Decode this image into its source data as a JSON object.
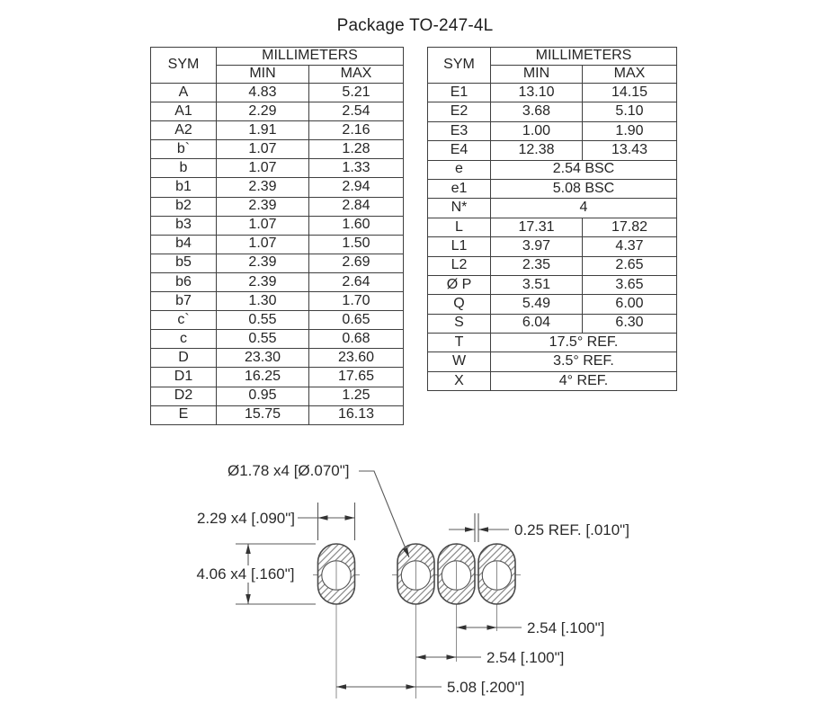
{
  "title": "Package TO-247-4L",
  "tables": {
    "left": {
      "headers": {
        "sym": "SYM",
        "group": "MILLIMETERS",
        "min": "MIN",
        "max": "MAX"
      },
      "rows": [
        {
          "sym": "A",
          "min": "4.83",
          "max": "5.21"
        },
        {
          "sym": "A1",
          "min": "2.29",
          "max": "2.54"
        },
        {
          "sym": "A2",
          "min": "1.91",
          "max": "2.16"
        },
        {
          "sym": "b`",
          "min": "1.07",
          "max": "1.28"
        },
        {
          "sym": "b",
          "min": "1.07",
          "max": "1.33"
        },
        {
          "sym": "b1",
          "min": "2.39",
          "max": "2.94"
        },
        {
          "sym": "b2",
          "min": "2.39",
          "max": "2.84"
        },
        {
          "sym": "b3",
          "min": "1.07",
          "max": "1.60"
        },
        {
          "sym": "b4",
          "min": "1.07",
          "max": "1.50"
        },
        {
          "sym": "b5",
          "min": "2.39",
          "max": "2.69"
        },
        {
          "sym": "b6",
          "min": "2.39",
          "max": "2.64"
        },
        {
          "sym": "b7",
          "min": "1.30",
          "max": "1.70"
        },
        {
          "sym": "c`",
          "min": "0.55",
          "max": "0.65"
        },
        {
          "sym": "c",
          "min": "0.55",
          "max": "0.68"
        },
        {
          "sym": "D",
          "min": "23.30",
          "max": "23.60"
        },
        {
          "sym": "D1",
          "min": "16.25",
          "max": "17.65"
        },
        {
          "sym": "D2",
          "min": "0.95",
          "max": "1.25"
        },
        {
          "sym": "E",
          "min": "15.75",
          "max": "16.13"
        }
      ]
    },
    "right": {
      "headers": {
        "sym": "SYM",
        "group": "MILLIMETERS",
        "min": "MIN",
        "max": "MAX"
      },
      "rows": [
        {
          "sym": "E1",
          "min": "13.10",
          "max": "14.15"
        },
        {
          "sym": "E2",
          "min": "3.68",
          "max": "5.10"
        },
        {
          "sym": "E3",
          "min": "1.00",
          "max": "1.90"
        },
        {
          "sym": "E4",
          "min": "12.38",
          "max": "13.43"
        },
        {
          "sym": "e",
          "span": "2.54 BSC"
        },
        {
          "sym": "e1",
          "span": "5.08 BSC"
        },
        {
          "sym": "N*",
          "span": "4"
        },
        {
          "sym": "L",
          "min": "17.31",
          "max": "17.82"
        },
        {
          "sym": "L1",
          "min": "3.97",
          "max": "4.37"
        },
        {
          "sym": "L2",
          "min": "2.35",
          "max": "2.65"
        },
        {
          "sym": "Ø P",
          "min": "3.51",
          "max": "3.65"
        },
        {
          "sym": "Q",
          "min": "5.49",
          "max": "6.00"
        },
        {
          "sym": "S",
          "min": "6.04",
          "max": "6.30"
        },
        {
          "sym": "T",
          "span": "17.5° REF."
        },
        {
          "sym": "W",
          "span": "3.5° REF."
        },
        {
          "sym": "X",
          "span": "4° REF."
        }
      ]
    }
  },
  "drawing": {
    "labels": {
      "hole_dia": "Ø1.78 x4 [Ø.070\"]",
      "pad_width": "2.29 x4 [.090\"]",
      "pad_height": "4.06 x4 [.160\"]",
      "pad_gap": "0.25 REF. [.010\"]",
      "pitch_3_4": "2.54 [.100\"]",
      "pitch_2_3": "2.54 [.100\"]",
      "pitch_1_2": "5.08 [.200\"]"
    }
  }
}
